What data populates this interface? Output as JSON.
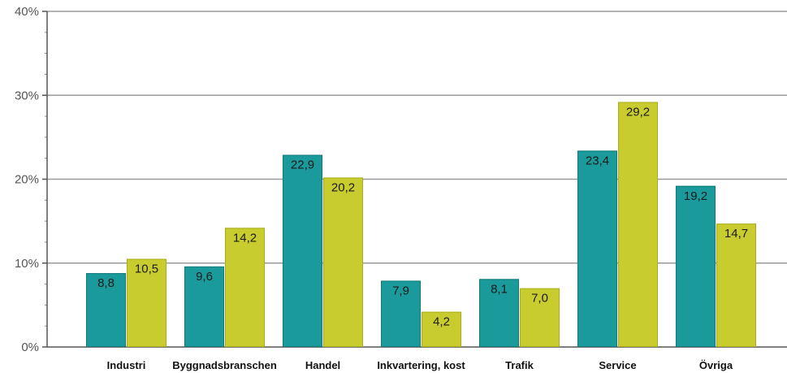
{
  "chart_data": {
    "type": "bar",
    "categories": [
      "Industri",
      "Byggnadsbranschen",
      "Handel",
      "Inkvartering, kost",
      "Trafik",
      "Service",
      "Övriga"
    ],
    "series": [
      {
        "values": [
          8.8,
          9.6,
          22.9,
          7.9,
          8.1,
          23.4,
          19.2
        ],
        "labels": [
          "8,8",
          "9,6",
          "22,9",
          "7,9",
          "8,1",
          "23,4",
          "19,2"
        ],
        "color": "#1a9a9a"
      },
      {
        "values": [
          10.5,
          14.2,
          20.2,
          4.2,
          7.0,
          29.2,
          14.7
        ],
        "labels": [
          "10,5",
          "14,2",
          "20,2",
          "4,2",
          "7,0",
          "29,2",
          "14,7"
        ],
        "color": "#c8cc2e"
      }
    ],
    "yticks": [
      0,
      10,
      20,
      30,
      40
    ],
    "ytick_labels": [
      "0%",
      "10%",
      "20%",
      "30%",
      "40%"
    ],
    "ylim": [
      0,
      40
    ],
    "grid": true,
    "legend": "none",
    "title": "",
    "xlabel": "",
    "ylabel": ""
  }
}
